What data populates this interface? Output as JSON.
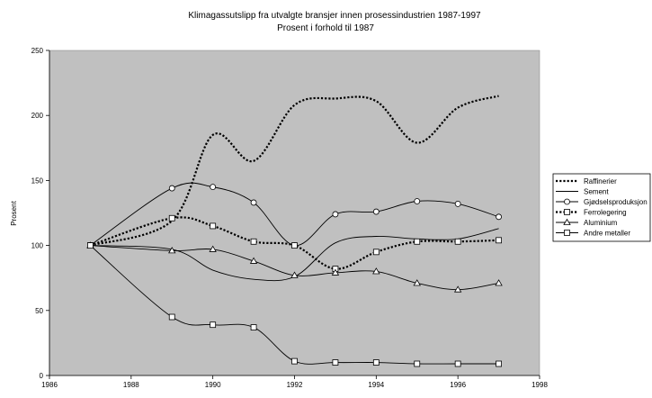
{
  "chart_data": {
    "type": "line",
    "title": "Klimagassutslipp fra utvalgte bransjer innen prosessindustrien 1987-1997",
    "subtitle": "Prosent i forhold til 1987",
    "xlabel": "",
    "ylabel": "Prosent",
    "xlim": [
      1986,
      1998
    ],
    "ylim": [
      0,
      250
    ],
    "xticks": [
      1986,
      1988,
      1990,
      1992,
      1994,
      1996,
      1998
    ],
    "yticks": [
      0,
      50,
      100,
      150,
      200,
      250
    ],
    "grid": false,
    "legend_position": "right",
    "plot_background": "#c0c0c0",
    "x": [
      1987,
      1989,
      1990,
      1991,
      1992,
      1993,
      1994,
      1995,
      1996,
      1997
    ],
    "series": [
      {
        "name": "Raffinerier",
        "style": "dotted",
        "marker": "none",
        "values": [
          100,
          119,
          185,
          165,
          208,
          213,
          211,
          179,
          206,
          215
        ]
      },
      {
        "name": "Sement",
        "style": "solid",
        "marker": "none",
        "values": [
          100,
          97,
          81,
          74,
          76,
          102,
          107,
          105,
          105,
          113
        ]
      },
      {
        "name": "Gjødselsproduksjon",
        "style": "solid",
        "marker": "circle",
        "values": [
          100,
          144,
          145,
          133,
          100,
          124,
          126,
          134,
          132,
          122
        ]
      },
      {
        "name": "Ferrolegering",
        "style": "dotted",
        "marker": "square",
        "values": [
          100,
          121,
          115,
          103,
          100,
          82,
          95,
          103,
          103,
          104
        ]
      },
      {
        "name": "Aluminium",
        "style": "solid",
        "marker": "triangle",
        "values": [
          100,
          96,
          97,
          88,
          77,
          79,
          80,
          71,
          66,
          71
        ]
      },
      {
        "name": "Andre metaller",
        "style": "solid",
        "marker": "square",
        "values": [
          100,
          45,
          39,
          37,
          11,
          10,
          10,
          9,
          9,
          9
        ]
      }
    ]
  }
}
